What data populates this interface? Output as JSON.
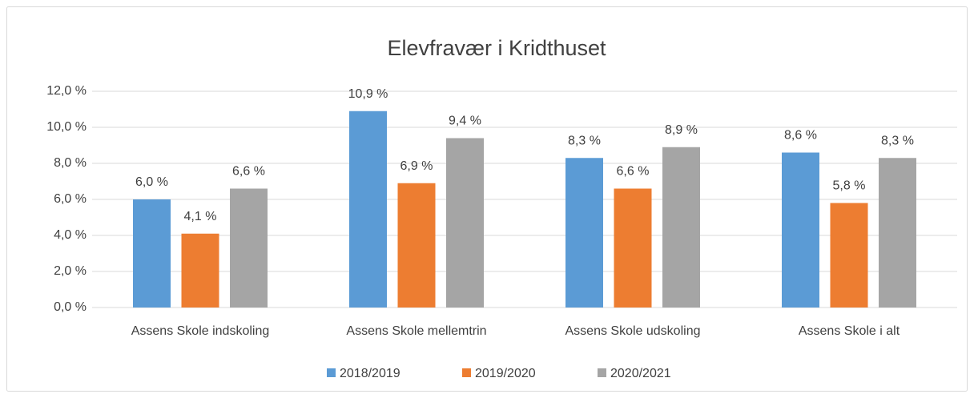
{
  "chart_data": {
    "type": "bar",
    "title": "Elevfravær i Kridthuset",
    "categories": [
      "Assens Skole indskoling",
      "Assens Skole mellemtrin",
      "Assens Skole udskoling",
      "Assens Skole i alt"
    ],
    "series": [
      {
        "name": "2018/2019",
        "color": "#5b9bd5",
        "values": [
          6.0,
          10.9,
          8.3,
          8.6
        ],
        "value_labels": [
          "6,0 %",
          "10,9 %",
          "8,3 %",
          "8,6 %"
        ]
      },
      {
        "name": "2019/2020",
        "color": "#ed7d31",
        "values": [
          4.1,
          6.9,
          6.6,
          5.8
        ],
        "value_labels": [
          "4,1 %",
          "6,9 %",
          "6,6 %",
          "5,8 %"
        ]
      },
      {
        "name": "2020/2021",
        "color": "#a5a5a5",
        "values": [
          6.6,
          9.4,
          8.9,
          8.3
        ],
        "value_labels": [
          "6,6 %",
          "9,4 %",
          "8,9 %",
          "8,3 %"
        ]
      }
    ],
    "ylim": [
      0,
      12
    ],
    "yticks": [
      {
        "value": 0,
        "label": "0,0 %"
      },
      {
        "value": 2,
        "label": "2,0 %"
      },
      {
        "value": 4,
        "label": "4,0 %"
      },
      {
        "value": 6,
        "label": "6,0 %"
      },
      {
        "value": 8,
        "label": "8,0 %"
      },
      {
        "value": 10,
        "label": "10,0 %"
      },
      {
        "value": 12,
        "label": "12,0 %"
      }
    ],
    "grid": true,
    "legend": "bottom"
  }
}
